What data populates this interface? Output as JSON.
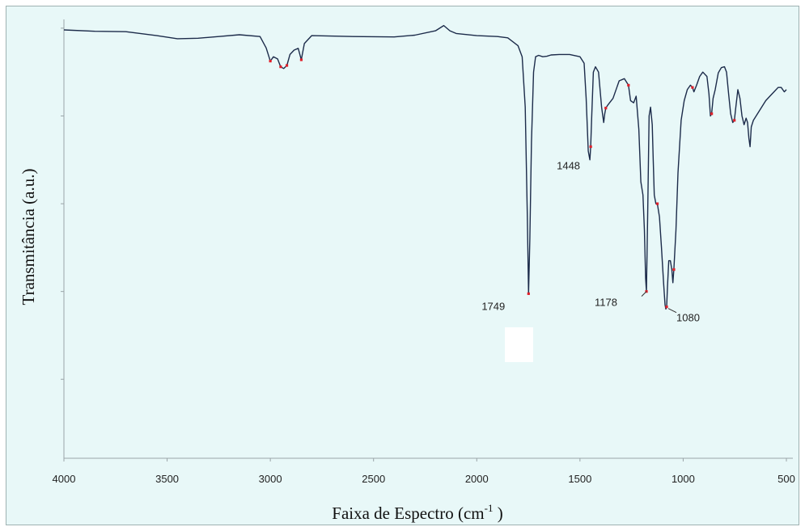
{
  "chart_data": {
    "type": "line",
    "title": "",
    "xlabel": "Faixa de Espectro (cm",
    "xlabel_sup": "-1",
    "xlabel_close": " )",
    "ylabel": "Transmitância (a.u.)",
    "xlim": [
      4000,
      500
    ],
    "x_reversed": true,
    "ylim": [
      0,
      100
    ],
    "grid": false,
    "legend": "none",
    "line_color": "#1c2b4a",
    "marker_color": "#e0202a",
    "x_ticks": [
      4000,
      3500,
      3000,
      2500,
      2000,
      1500,
      1000,
      500
    ],
    "x_tick_labels": [
      "4000",
      "3500",
      "3000",
      "2500",
      "2000",
      "1500",
      "1000",
      "500"
    ],
    "y_ticks": [
      18,
      38,
      58,
      78,
      98
    ],
    "series": [
      {
        "x": [
          4000,
          3850,
          3700,
          3550,
          3450,
          3350,
          3250,
          3150,
          3050,
          3020,
          3000,
          2985,
          2965,
          2950,
          2935,
          2920,
          2905,
          2885,
          2865,
          2850,
          2835,
          2800,
          2600,
          2400,
          2300,
          2200,
          2160,
          2130,
          2100,
          2000,
          1900,
          1850,
          1800,
          1780,
          1765,
          1755,
          1749,
          1743,
          1735,
          1725,
          1715,
          1700,
          1680,
          1660,
          1640,
          1600,
          1550,
          1500,
          1480,
          1470,
          1460,
          1452,
          1448,
          1443,
          1435,
          1425,
          1410,
          1395,
          1385,
          1380,
          1375,
          1365,
          1340,
          1310,
          1285,
          1265,
          1255,
          1240,
          1228,
          1215,
          1205,
          1195,
          1188,
          1182,
          1178,
          1172,
          1165,
          1158,
          1150,
          1145,
          1140,
          1132,
          1125,
          1115,
          1105,
          1095,
          1088,
          1084,
          1080,
          1076,
          1070,
          1062,
          1055,
          1050,
          1045,
          1035,
          1025,
          1010,
          995,
          980,
          965,
          955,
          948,
          935,
          920,
          905,
          885,
          875,
          868,
          862,
          855,
          845,
          830,
          815,
          800,
          790,
          780,
          770,
          760,
          752,
          745,
          735,
          725,
          715,
          705,
          695,
          688,
          682,
          676,
          670,
          660,
          640,
          620,
          600,
          580,
          560,
          540,
          525,
          510,
          500
        ],
        "y": [
          97.6,
          97.3,
          97.2,
          96.3,
          95.6,
          95.7,
          96.1,
          96.5,
          96.1,
          93.5,
          90.5,
          91.5,
          91.0,
          89.2,
          88.8,
          89.5,
          92.0,
          93.0,
          93.4,
          90.8,
          94.5,
          96.3,
          96.1,
          96.0,
          96.4,
          97.4,
          98.6,
          97.4,
          96.8,
          96.3,
          96.1,
          95.8,
          94.0,
          91.5,
          80.0,
          55.0,
          37.5,
          50.0,
          72.0,
          88.0,
          91.5,
          91.8,
          91.5,
          91.6,
          91.9,
          92.0,
          92.0,
          91.5,
          90.0,
          82.0,
          70.0,
          68.0,
          71.0,
          78.0,
          88.0,
          89.2,
          88.0,
          80.0,
          76.5,
          78.5,
          79.8,
          80.5,
          82.0,
          86.0,
          86.5,
          85.0,
          81.5,
          81.0,
          82.5,
          75.0,
          63.0,
          60.0,
          52.0,
          41.0,
          38.0,
          55.0,
          78.0,
          80.0,
          76.0,
          68.0,
          60.0,
          58.0,
          58.0,
          55.0,
          48.0,
          40.0,
          35.0,
          34.0,
          34.5,
          39.0,
          45.0,
          45.0,
          43.0,
          40.0,
          43.0,
          52.0,
          65.0,
          77.0,
          81.5,
          84.0,
          85.0,
          84.5,
          83.5,
          85.0,
          87.0,
          88.0,
          87.0,
          83.0,
          78.0,
          78.5,
          82.0,
          84.0,
          87.8,
          89.0,
          89.2,
          88.0,
          83.0,
          78.5,
          76.5,
          77.0,
          80.0,
          84.0,
          82.0,
          78.0,
          76.0,
          77.5,
          76.5,
          73.0,
          71.0,
          75.5,
          77.0,
          78.5,
          80.0,
          81.5,
          82.5,
          83.5,
          84.5,
          84.5,
          83.5,
          84.0
        ]
      }
    ],
    "peak_markers_x": [
      3000,
      2950,
      2920,
      2850,
      1749,
      1448,
      1375,
      1265,
      1178,
      1125,
      1080,
      1045,
      955,
      862,
      752
    ],
    "peak_labels": [
      {
        "x": 1749,
        "text": "1749"
      },
      {
        "x": 1448,
        "text": "1448"
      },
      {
        "x": 1178,
        "text": "1178"
      },
      {
        "x": 1080,
        "text": "1080"
      }
    ]
  }
}
